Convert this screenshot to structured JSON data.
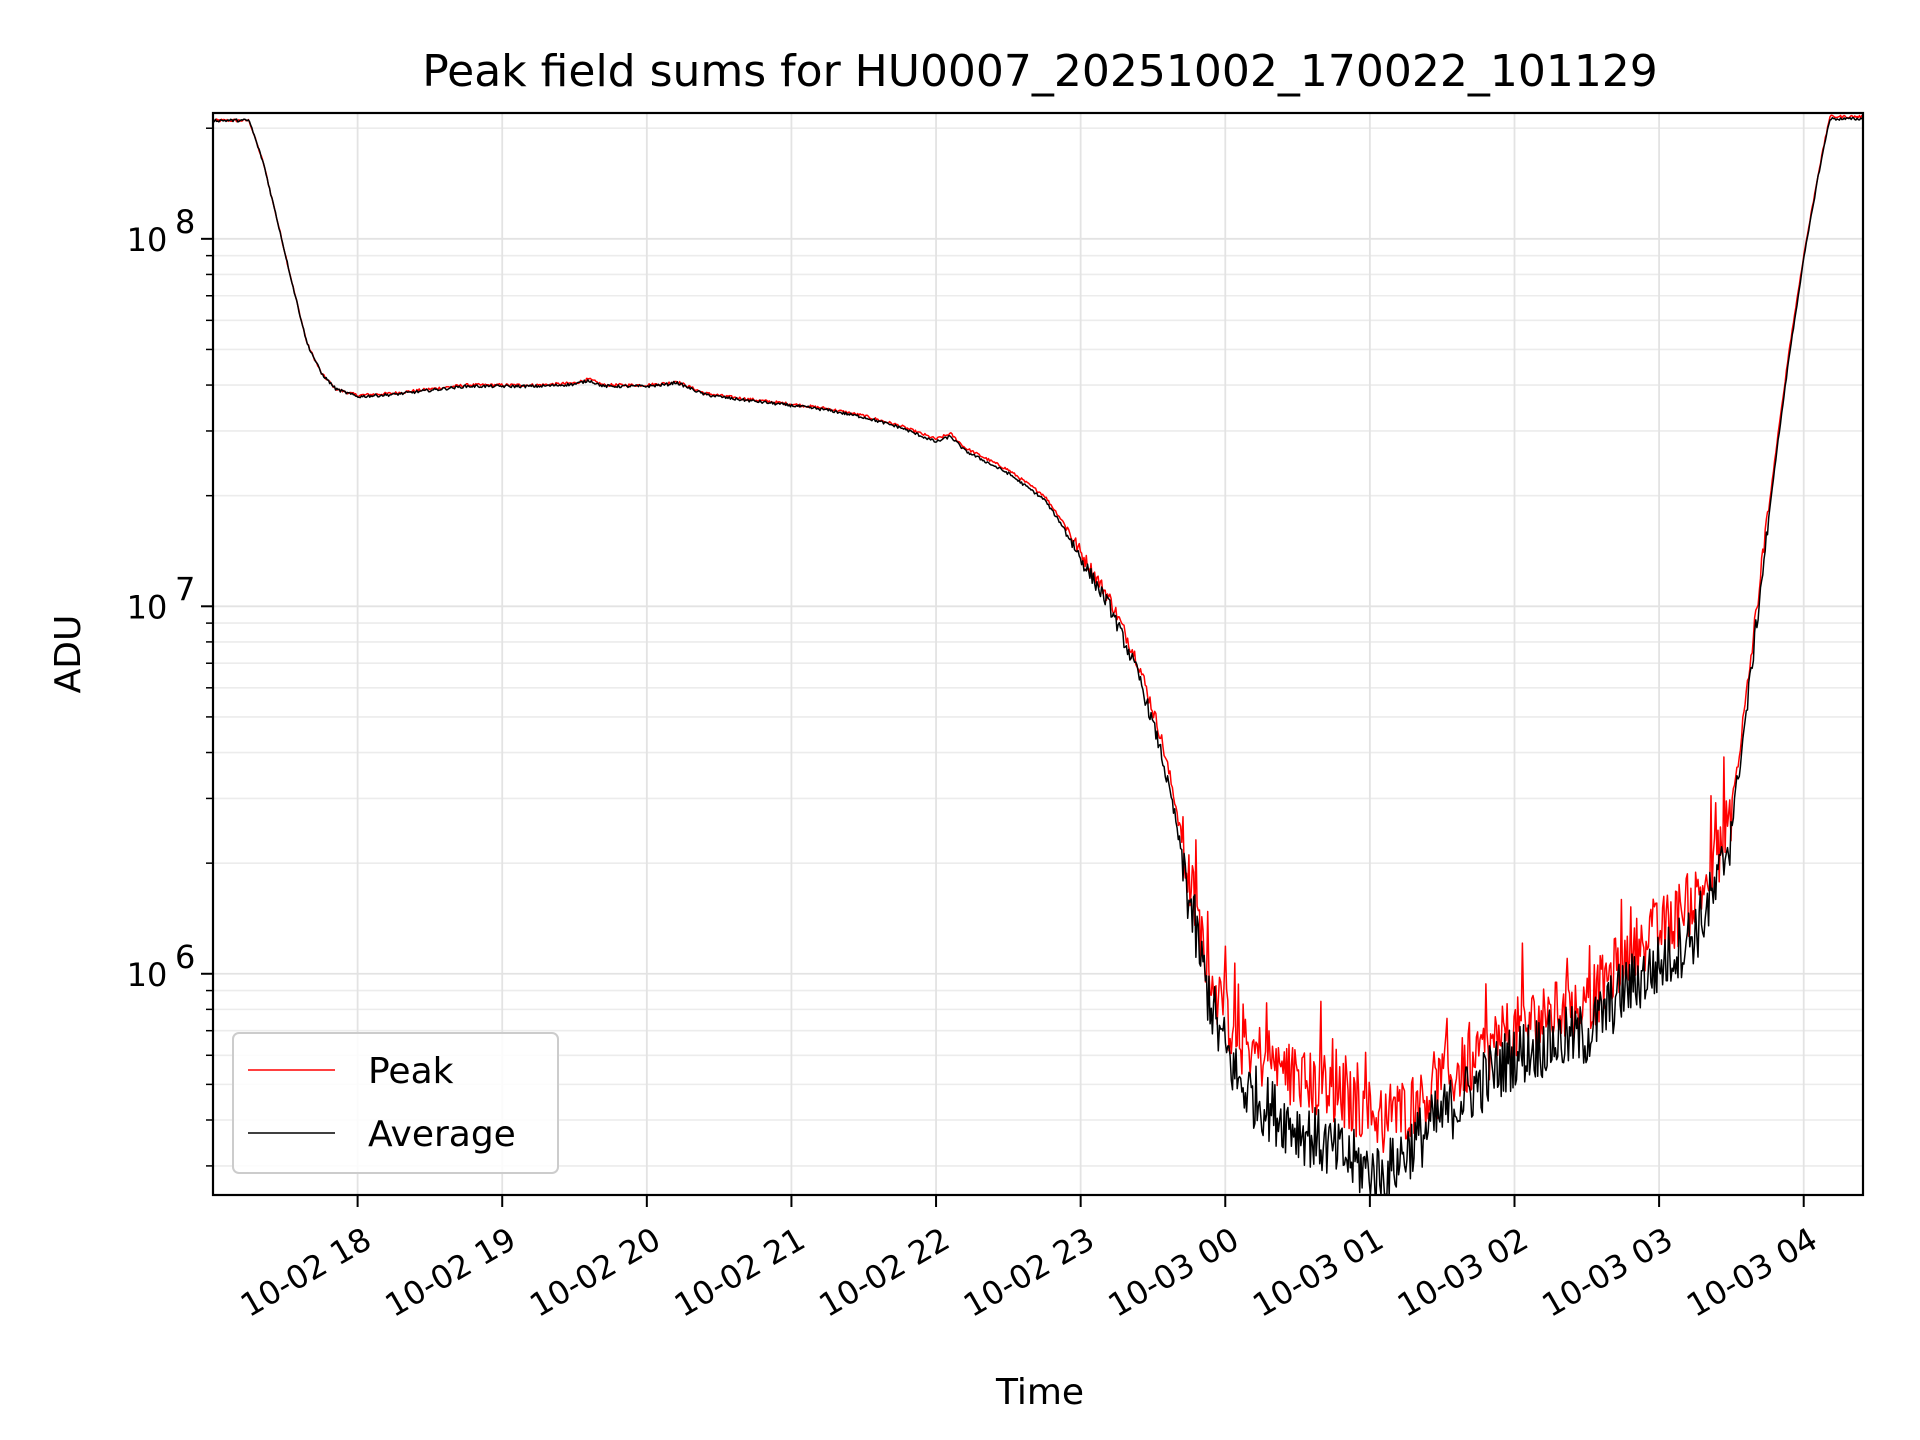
{
  "chart_data": {
    "type": "line",
    "title": "Peak field sums for HU0007_20251002_170022_101129",
    "xlabel": "Time",
    "ylabel": "ADU",
    "yscale": "log",
    "ylim": [
      250000,
      220000000
    ],
    "xlim_hours": [
      17.0,
      28.41
    ],
    "x_unit": "hours since 2025-10-02 00:00",
    "grid": true,
    "x_ticks": [
      {
        "value": 18,
        "label": "10-02 18"
      },
      {
        "value": 19,
        "label": "10-02 19"
      },
      {
        "value": 20,
        "label": "10-02 20"
      },
      {
        "value": 21,
        "label": "10-02 21"
      },
      {
        "value": 22,
        "label": "10-02 22"
      },
      {
        "value": 23,
        "label": "10-02 23"
      },
      {
        "value": 24,
        "label": "10-03 00"
      },
      {
        "value": 25,
        "label": "10-03 01"
      },
      {
        "value": 26,
        "label": "10-03 02"
      },
      {
        "value": 27,
        "label": "10-03 03"
      },
      {
        "value": 28,
        "label": "10-03 04"
      }
    ],
    "y_ticks": [
      {
        "value": 1000000,
        "base": "10",
        "exp": "6"
      },
      {
        "value": 10000000,
        "base": "10",
        "exp": "7"
      },
      {
        "value": 100000000,
        "base": "10",
        "exp": "8"
      }
    ],
    "legend": {
      "position": "lower-left",
      "entries": [
        {
          "label": "Peak",
          "color": "#ff0000"
        },
        {
          "label": "Average",
          "color": "#000000"
        }
      ]
    },
    "series": [
      {
        "name": "Peak",
        "color": "#ff0000",
        "points": [
          [
            17.0,
            210000000
          ],
          [
            17.25,
            210000000
          ],
          [
            17.35,
            160000000
          ],
          [
            17.45,
            110000000
          ],
          [
            17.55,
            75000000
          ],
          [
            17.65,
            52000000
          ],
          [
            17.75,
            43000000
          ],
          [
            17.85,
            39000000
          ],
          [
            18.0,
            37500000
          ],
          [
            18.25,
            38000000
          ],
          [
            18.5,
            39000000
          ],
          [
            18.75,
            40000000
          ],
          [
            19.0,
            40000000
          ],
          [
            19.25,
            40000000
          ],
          [
            19.5,
            40500000
          ],
          [
            19.6,
            41500000
          ],
          [
            19.7,
            40000000
          ],
          [
            20.0,
            40000000
          ],
          [
            20.15,
            40500000
          ],
          [
            20.2,
            41000000
          ],
          [
            20.4,
            38000000
          ],
          [
            20.6,
            37000000
          ],
          [
            21.0,
            35500000
          ],
          [
            21.25,
            34500000
          ],
          [
            21.5,
            33000000
          ],
          [
            21.75,
            31000000
          ],
          [
            22.0,
            28500000
          ],
          [
            22.1,
            29500000
          ],
          [
            22.2,
            27000000
          ],
          [
            22.5,
            23500000
          ],
          [
            22.75,
            20000000
          ],
          [
            22.9,
            16500000
          ],
          [
            23.0,
            14000000
          ],
          [
            23.2,
            10500000
          ],
          [
            23.4,
            7000000
          ],
          [
            23.55,
            4500000
          ],
          [
            23.65,
            3000000
          ],
          [
            23.75,
            1800000
          ],
          [
            23.85,
            1200000
          ],
          [
            23.95,
            850000
          ],
          [
            24.1,
            650000
          ],
          [
            24.3,
            580000
          ],
          [
            24.5,
            520000
          ],
          [
            24.75,
            470000
          ],
          [
            25.0,
            420000
          ],
          [
            25.1,
            400000
          ],
          [
            25.25,
            430000
          ],
          [
            25.5,
            500000
          ],
          [
            25.75,
            600000
          ],
          [
            26.0,
            700000
          ],
          [
            26.25,
            780000
          ],
          [
            26.5,
            820000
          ],
          [
            26.75,
            1100000
          ],
          [
            27.0,
            1300000
          ],
          [
            27.25,
            1600000
          ],
          [
            27.4,
            2000000
          ],
          [
            27.5,
            2800000
          ],
          [
            27.6,
            5500000
          ],
          [
            27.7,
            12000000
          ],
          [
            27.8,
            25000000
          ],
          [
            27.9,
            50000000
          ],
          [
            28.0,
            90000000
          ],
          [
            28.1,
            150000000
          ],
          [
            28.18,
            215000000
          ],
          [
            28.41,
            215000000
          ]
        ]
      },
      {
        "name": "Average",
        "color": "#000000",
        "points": [
          [
            17.0,
            210000000
          ],
          [
            17.25,
            210000000
          ],
          [
            17.35,
            160000000
          ],
          [
            17.45,
            110000000
          ],
          [
            17.55,
            75000000
          ],
          [
            17.65,
            52000000
          ],
          [
            17.75,
            43000000
          ],
          [
            17.85,
            39000000
          ],
          [
            18.0,
            37200000
          ],
          [
            18.25,
            37700000
          ],
          [
            18.5,
            38700000
          ],
          [
            18.75,
            39700000
          ],
          [
            19.0,
            39700000
          ],
          [
            19.25,
            39700000
          ],
          [
            19.5,
            40200000
          ],
          [
            19.6,
            41200000
          ],
          [
            19.7,
            39700000
          ],
          [
            20.0,
            39700000
          ],
          [
            20.15,
            40200000
          ],
          [
            20.2,
            40700000
          ],
          [
            20.4,
            37700000
          ],
          [
            20.6,
            36700000
          ],
          [
            21.0,
            35200000
          ],
          [
            21.25,
            34200000
          ],
          [
            21.5,
            32700000
          ],
          [
            21.75,
            30700000
          ],
          [
            22.0,
            28000000
          ],
          [
            22.1,
            29000000
          ],
          [
            22.2,
            26500000
          ],
          [
            22.5,
            23000000
          ],
          [
            22.75,
            19500000
          ],
          [
            22.9,
            16000000
          ],
          [
            23.0,
            13500000
          ],
          [
            23.2,
            10000000
          ],
          [
            23.4,
            6500000
          ],
          [
            23.55,
            4100000
          ],
          [
            23.65,
            2700000
          ],
          [
            23.75,
            1600000
          ],
          [
            23.85,
            1000000
          ],
          [
            23.95,
            700000
          ],
          [
            24.1,
            500000
          ],
          [
            24.3,
            430000
          ],
          [
            24.5,
            380000
          ],
          [
            24.75,
            330000
          ],
          [
            25.0,
            290000
          ],
          [
            25.1,
            280000
          ],
          [
            25.25,
            330000
          ],
          [
            25.5,
            410000
          ],
          [
            25.75,
            500000
          ],
          [
            26.0,
            600000
          ],
          [
            26.25,
            650000
          ],
          [
            26.5,
            680000
          ],
          [
            26.75,
            900000
          ],
          [
            27.0,
            1050000
          ],
          [
            27.25,
            1300000
          ],
          [
            27.4,
            1700000
          ],
          [
            27.5,
            2500000
          ],
          [
            27.6,
            5000000
          ],
          [
            27.7,
            11000000
          ],
          [
            27.8,
            24000000
          ],
          [
            27.9,
            48000000
          ],
          [
            28.0,
            88000000
          ],
          [
            28.1,
            148000000
          ],
          [
            28.18,
            212000000
          ],
          [
            28.41,
            212000000
          ]
        ]
      }
    ]
  }
}
